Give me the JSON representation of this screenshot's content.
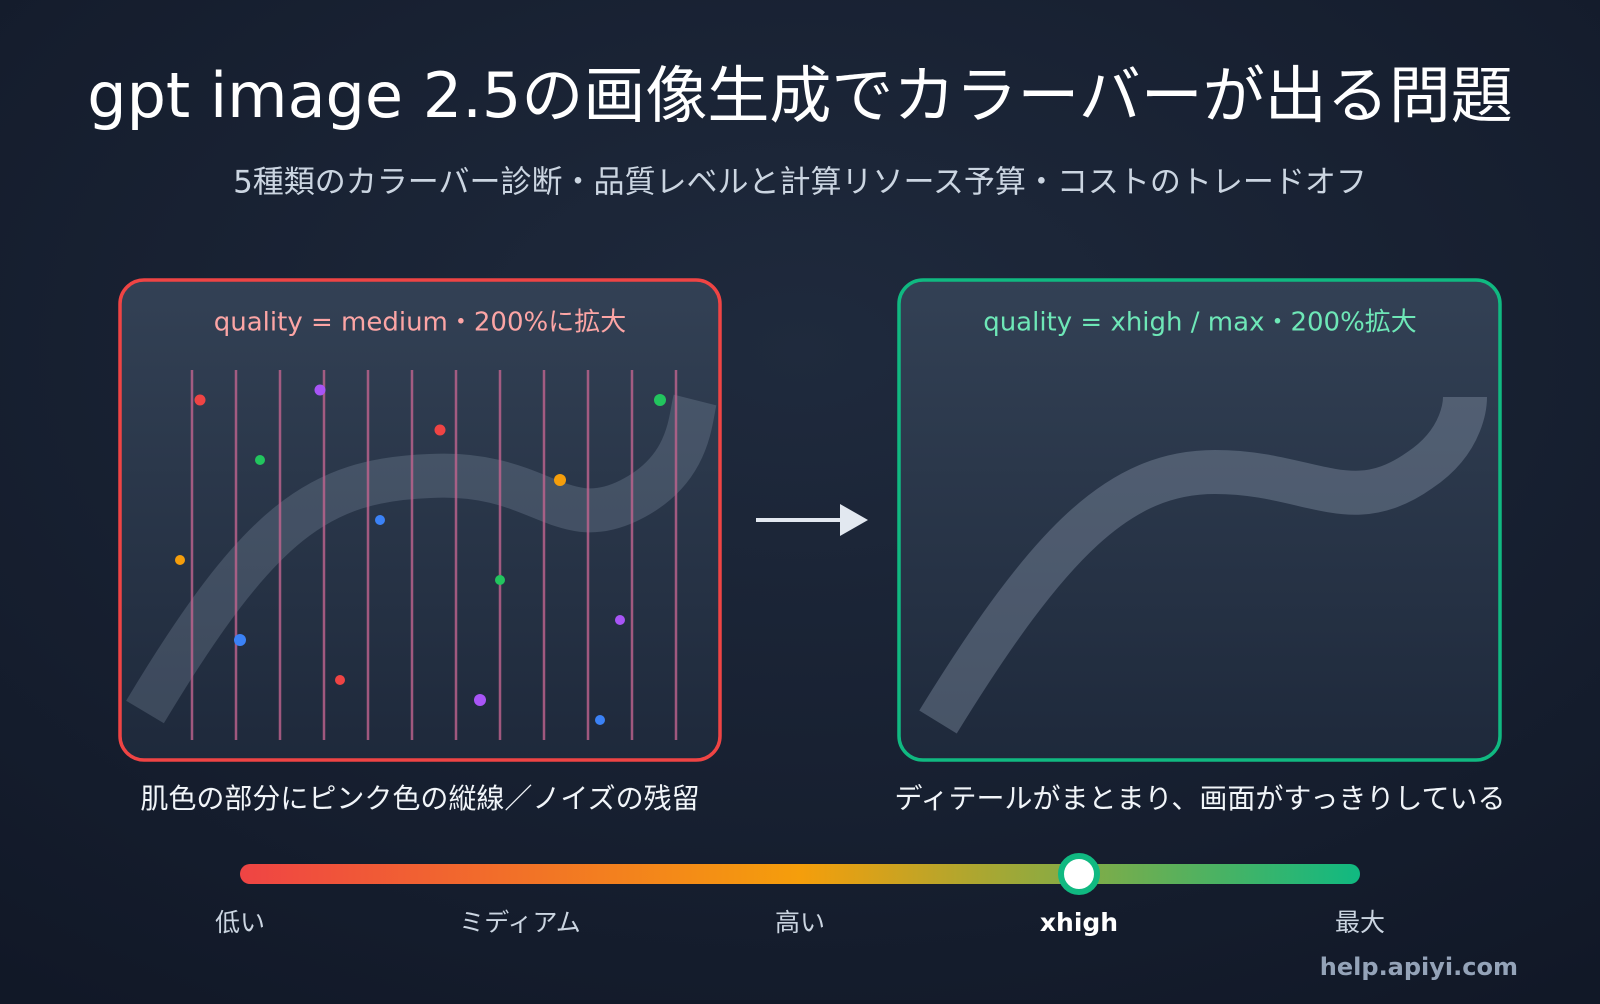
{
  "header": {
    "title": "gpt image 2.5の画像生成でカラーバーが出る問題",
    "subtitle": "5種類のカラーバー診断・品質レベルと計算リソース予算・コストのトレードオフ"
  },
  "panels": [
    {
      "label": "quality = medium・200%に拡大",
      "caption": "肌色の部分にピンク色の縦線／ノイズの残留"
    },
    {
      "label": "quality = xhigh / max・200%拡大",
      "caption": "ディテールがまとまり、画面がすっきりしている"
    }
  ],
  "scale": {
    "labels": [
      "低い",
      "ミディアム",
      "高い",
      "xhigh",
      "最大"
    ]
  },
  "footer": {
    "watermark": "help.apiyi.com"
  }
}
